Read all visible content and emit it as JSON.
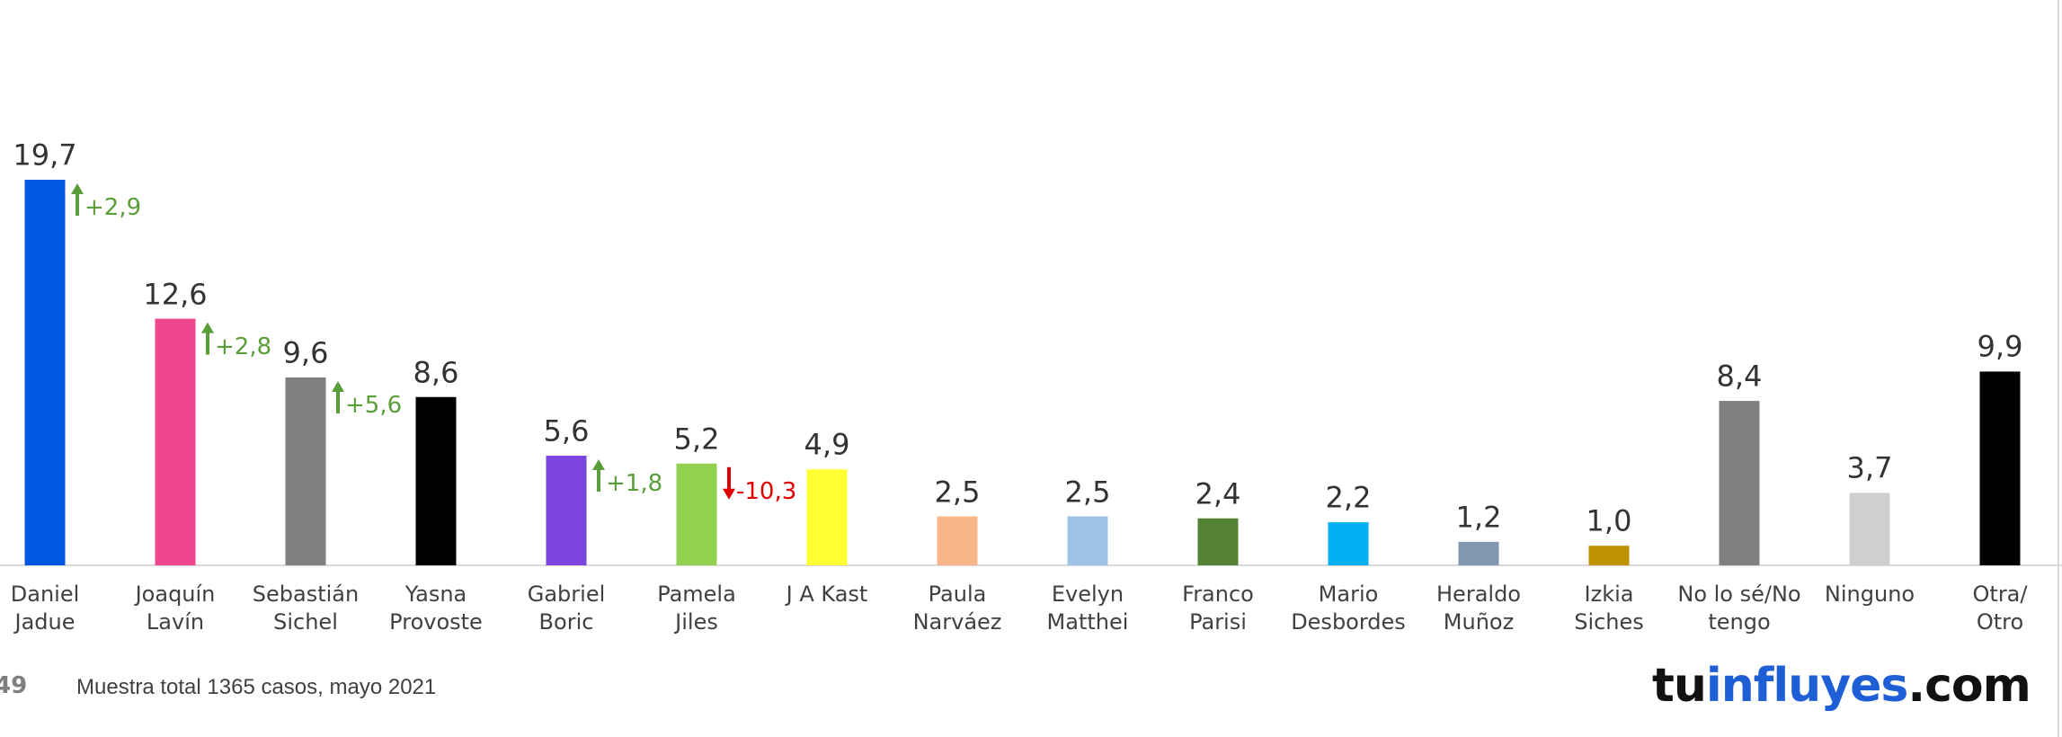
{
  "chart_data": {
    "type": "bar",
    "categories": [
      "Daniel\nJadue",
      "Joaquín\nLavín",
      "Sebastián\nSichel",
      "Yasna\nProvoste",
      "Gabriel\nBoric",
      "Pamela\nJiles",
      "J A Kast",
      "Paula\nNarváez",
      "Evelyn\nMatthei",
      "Franco\nParisi",
      "Mario\nDesbordes",
      "Heraldo\nMuñoz",
      "Izkia\nSiches",
      "No lo sé/No\ntengo",
      "Ninguno",
      "Otra/ Otro"
    ],
    "values": [
      19.7,
      12.6,
      9.6,
      8.6,
      5.6,
      5.2,
      4.9,
      2.5,
      2.5,
      2.4,
      2.2,
      1.2,
      1.0,
      8.4,
      3.7,
      9.9
    ],
    "value_labels": [
      "19,7",
      "12,6",
      "9,6",
      "8,6",
      "5,6",
      "5,2",
      "4,9",
      "2,5",
      "2,5",
      "2,4",
      "2,2",
      "1,2",
      "1,0",
      "8,4",
      "3,7",
      "9,9"
    ],
    "colors": [
      "#0057e0",
      "#f0458f",
      "#808080",
      "#000000",
      "#7a44dd",
      "#92d050",
      "#ffff33",
      "#f8b589",
      "#9dc3e6",
      "#548235",
      "#00b0f0",
      "#8497b0",
      "#bf9000",
      "#808080",
      "#d0cece",
      "#000000"
    ],
    "changes": [
      2.9,
      2.8,
      5.6,
      null,
      1.8,
      -10.3,
      null,
      null,
      null,
      null,
      null,
      null,
      null,
      null,
      null,
      null
    ],
    "change_labels": [
      "+2,9",
      "+2,8",
      "+5,6",
      null,
      "+1,8",
      "-10,3",
      null,
      null,
      null,
      null,
      null,
      null,
      null,
      null,
      null,
      null
    ]
  },
  "footer": {
    "page": "49",
    "note": "Muestra total 1365 casos,  mayo 2021",
    "logo": [
      "tu",
      "influyes",
      ".com"
    ]
  }
}
